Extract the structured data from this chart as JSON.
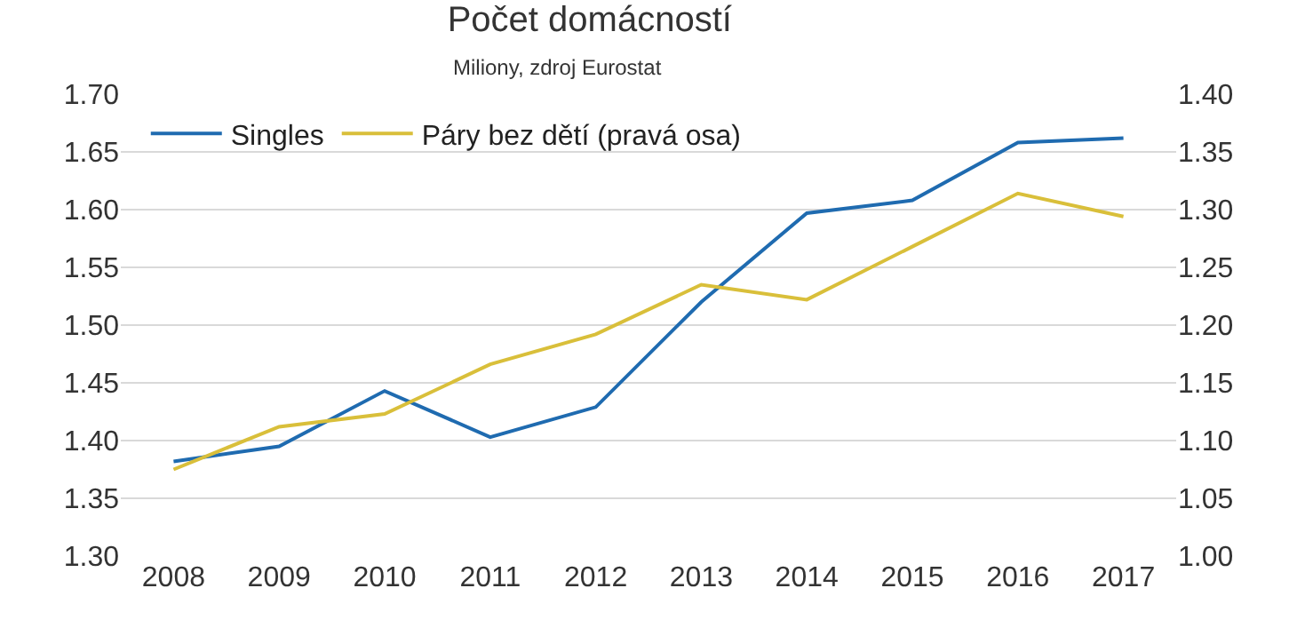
{
  "chart_data": {
    "type": "line",
    "title": "Počet domácností",
    "subtitle": "Miliony, zdroj Eurostat",
    "categories": [
      "2008",
      "2009",
      "2010",
      "2011",
      "2012",
      "2013",
      "2014",
      "2015",
      "2016",
      "2017"
    ],
    "series": [
      {
        "name": "Singles",
        "color": "#1f6bb0",
        "values": [
          1.382,
          1.395,
          1.443,
          1.403,
          1.429,
          1.52,
          1.597,
          1.608,
          1.658,
          1.662
        ]
      },
      {
        "name": "Páry bez dětí (pravá osa)",
        "color": "#d9bf3a",
        "axis": "y2",
        "values": [
          1.075,
          1.112,
          1.123,
          1.166,
          1.192,
          1.235,
          1.222,
          1.268,
          1.314,
          1.294
        ]
      }
    ],
    "ylim": [
      1.3,
      1.7
    ],
    "yticks": [
      {
        "value": 1.3,
        "label": "1.30"
      },
      {
        "value": 1.35,
        "label": "1.35"
      },
      {
        "value": 1.4,
        "label": "1.40"
      },
      {
        "value": 1.45,
        "label": "1.45"
      },
      {
        "value": 1.5,
        "label": "1.50"
      },
      {
        "value": 1.55,
        "label": "1.55"
      },
      {
        "value": 1.6,
        "label": "1.60"
      },
      {
        "value": 1.65,
        "label": "1.65"
      },
      {
        "value": 1.7,
        "label": "1.70"
      }
    ],
    "y2lim": [
      1.0,
      1.4
    ],
    "y2ticks": [
      {
        "value": 1.0,
        "label": "1.00"
      },
      {
        "value": 1.05,
        "label": "1.05"
      },
      {
        "value": 1.1,
        "label": "1.10"
      },
      {
        "value": 1.15,
        "label": "1.15"
      },
      {
        "value": 1.2,
        "label": "1.20"
      },
      {
        "value": 1.25,
        "label": "1.25"
      },
      {
        "value": 1.3,
        "label": "1.30"
      },
      {
        "value": 1.35,
        "label": "1.35"
      },
      {
        "value": 1.4,
        "label": "1.40"
      }
    ],
    "grid": "y",
    "legend": "top left",
    "marker": "none",
    "line_style": "solid"
  }
}
